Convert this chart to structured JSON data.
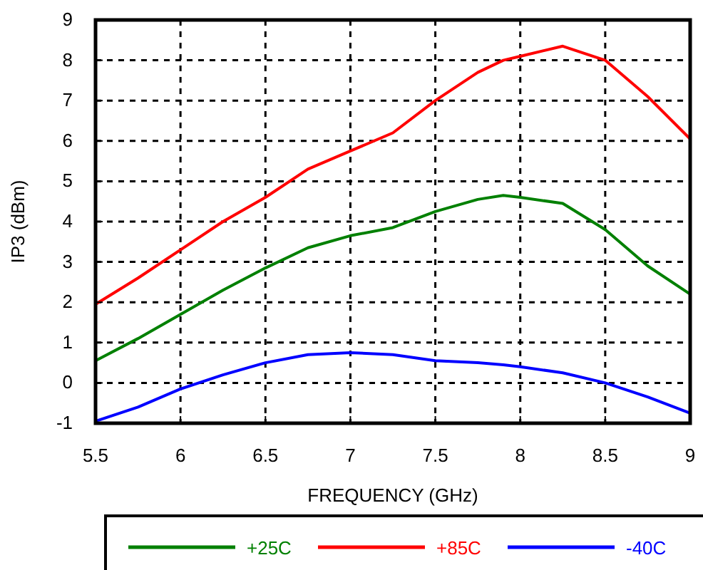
{
  "chart_data": {
    "type": "line",
    "xlabel": "FREQUENCY (GHz)",
    "ylabel": "IP3 (dBm)",
    "xlim": [
      5.5,
      9
    ],
    "ylim": [
      -1,
      9
    ],
    "xticks": [
      5.5,
      6,
      6.5,
      7,
      7.5,
      8,
      8.5,
      9
    ],
    "yticks": [
      -1,
      0,
      1,
      2,
      3,
      4,
      5,
      6,
      7,
      8,
      9
    ],
    "grid": true,
    "legend": "bottom",
    "line_style": "solid",
    "marker": "none",
    "x": [
      5.5,
      5.75,
      6,
      6.25,
      6.5,
      6.75,
      7,
      7.25,
      7.5,
      7.75,
      7.9,
      8,
      8.25,
      8.5,
      8.75,
      9
    ],
    "series": [
      {
        "name": "+25C",
        "color": "#008000",
        "values": [
          0.55,
          1.1,
          1.7,
          2.3,
          2.85,
          3.35,
          3.65,
          3.85,
          4.25,
          4.55,
          4.65,
          4.6,
          4.45,
          3.8,
          2.9,
          2.2
        ]
      },
      {
        "name": "+85C",
        "color": "#ff0000",
        "values": [
          1.95,
          2.6,
          3.3,
          4.0,
          4.6,
          5.3,
          5.75,
          6.2,
          7.0,
          7.7,
          8.0,
          8.1,
          8.35,
          8.0,
          7.1,
          6.05
        ]
      },
      {
        "name": "-40C",
        "color": "#0000ff",
        "values": [
          -0.95,
          -0.6,
          -0.15,
          0.2,
          0.5,
          0.7,
          0.75,
          0.7,
          0.55,
          0.5,
          0.45,
          0.4,
          0.25,
          0.0,
          -0.35,
          -0.75
        ]
      }
    ]
  }
}
